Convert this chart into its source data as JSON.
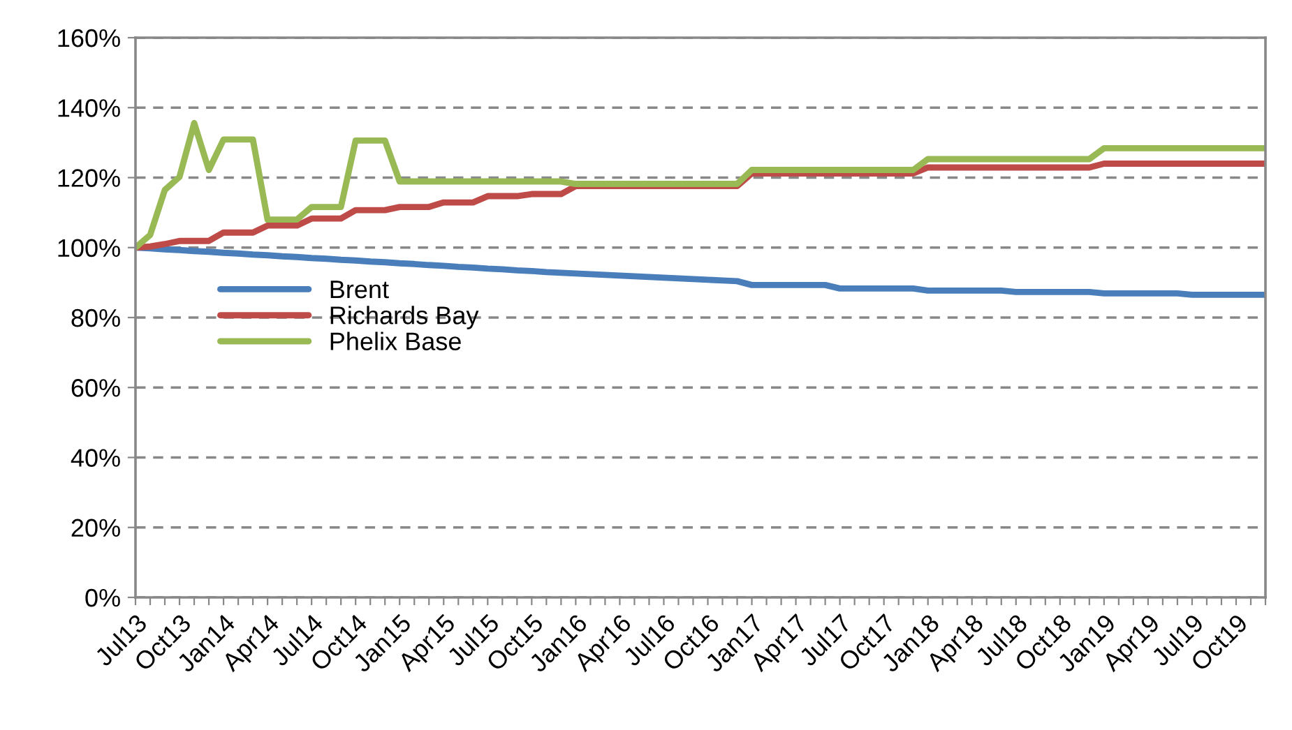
{
  "chart_data": {
    "type": "line",
    "categories": [
      "Jul13",
      null,
      null,
      "Oct13",
      null,
      null,
      "Jan14",
      null,
      null,
      "Apr14",
      null,
      null,
      "Jul14",
      null,
      null,
      "Oct14",
      null,
      null,
      "Jan15",
      null,
      null,
      "Apr15",
      null,
      null,
      "Jul15",
      null,
      null,
      "Oct15",
      null,
      null,
      "Jan16",
      null,
      null,
      "Apr16",
      null,
      null,
      "Jul16",
      null,
      null,
      "Oct16",
      null,
      null,
      "Jan17",
      null,
      null,
      "Apr17",
      null,
      null,
      "Jul17",
      null,
      null,
      "Oct17",
      null,
      null,
      "Jan18",
      null,
      null,
      "Apr18",
      null,
      null,
      "Jul18",
      null,
      null,
      "Oct18",
      null,
      null,
      "Jan19",
      null,
      null,
      "Apr19",
      null,
      null,
      "Jul19",
      null,
      null,
      "Oct19",
      null,
      null
    ],
    "series": [
      {
        "name": "Brent",
        "color": "#4a7ebb",
        "values": [
          100,
          99.8,
          99.5,
          99.3,
          99,
          98.8,
          98.5,
          98.3,
          98,
          97.8,
          97.5,
          97.3,
          97,
          96.8,
          96.5,
          96.3,
          96,
          95.8,
          95.5,
          95.3,
          95,
          94.8,
          94.5,
          94.3,
          94,
          93.8,
          93.5,
          93.3,
          93,
          92.8,
          92.6,
          92.4,
          92.2,
          92,
          91.8,
          91.6,
          91.4,
          91.2,
          91,
          90.8,
          90.6,
          90.4,
          89.3,
          89.3,
          89.3,
          89.3,
          89.3,
          89.3,
          88.3,
          88.3,
          88.3,
          88.3,
          88.3,
          88.3,
          87.7,
          87.7,
          87.7,
          87.7,
          87.7,
          87.7,
          87.3,
          87.3,
          87.3,
          87.3,
          87.3,
          87.3,
          86.9,
          86.9,
          86.9,
          86.9,
          86.9,
          86.9,
          86.5,
          86.5,
          86.5,
          86.5,
          86.5,
          86.5
        ]
      },
      {
        "name": "Richards Bay",
        "color": "#be4b48",
        "values": [
          100,
          100.3,
          101,
          101.9,
          101.9,
          101.9,
          104.3,
          104.3,
          104.3,
          106.3,
          106.3,
          106.3,
          108.3,
          108.3,
          108.3,
          110.7,
          110.7,
          110.7,
          111.6,
          111.6,
          111.6,
          112.9,
          112.9,
          112.9,
          114.7,
          114.7,
          114.7,
          115.3,
          115.3,
          115.3,
          117.6,
          117.6,
          117.6,
          117.6,
          117.6,
          117.6,
          117.6,
          117.6,
          117.6,
          117.6,
          117.6,
          117.6,
          121.2,
          121.2,
          121.2,
          121.2,
          121.2,
          121.2,
          121.2,
          121.2,
          121.2,
          121.2,
          121.2,
          121.2,
          122.9,
          122.9,
          122.9,
          122.9,
          122.9,
          122.9,
          122.9,
          122.9,
          122.9,
          122.9,
          122.9,
          122.9,
          124,
          124,
          124,
          124,
          124,
          124,
          124,
          124,
          124,
          124,
          124,
          124
        ]
      },
      {
        "name": "Phelix Base",
        "color": "#98b954",
        "values": [
          100,
          103.6,
          116.5,
          120.2,
          135.6,
          122.2,
          130.9,
          130.9,
          130.9,
          108,
          108,
          108,
          111.6,
          111.6,
          111.6,
          130.6,
          130.6,
          130.6,
          118.9,
          118.9,
          118.9,
          118.9,
          118.9,
          118.9,
          118.9,
          118.9,
          118.9,
          118.9,
          118.9,
          118.9,
          118.2,
          118.2,
          118.2,
          118.2,
          118.2,
          118.2,
          118.2,
          118.2,
          118.2,
          118.2,
          118.2,
          118.2,
          122.2,
          122.2,
          122.2,
          122.2,
          122.2,
          122.2,
          122.2,
          122.2,
          122.2,
          122.2,
          122.2,
          122.2,
          125.3,
          125.3,
          125.3,
          125.3,
          125.3,
          125.3,
          125.3,
          125.3,
          125.3,
          125.3,
          125.3,
          125.3,
          128.4,
          128.4,
          128.4,
          128.4,
          128.4,
          128.4,
          128.4,
          128.4,
          128.4,
          128.4,
          128.4,
          128.4
        ]
      }
    ],
    "ylim": [
      0,
      160
    ],
    "yticks": [
      {
        "value": 0,
        "label": "0%"
      },
      {
        "value": 20,
        "label": "20%"
      },
      {
        "value": 40,
        "label": "40%"
      },
      {
        "value": 60,
        "label": "60%"
      },
      {
        "value": 80,
        "label": "80%"
      },
      {
        "value": 100,
        "label": "100%"
      },
      {
        "value": 120,
        "label": "120%"
      },
      {
        "value": 140,
        "label": "140%"
      },
      {
        "value": 160,
        "label": "160%"
      }
    ],
    "grid": "y",
    "legend": "left",
    "marker": "none",
    "line_style": "solid"
  }
}
